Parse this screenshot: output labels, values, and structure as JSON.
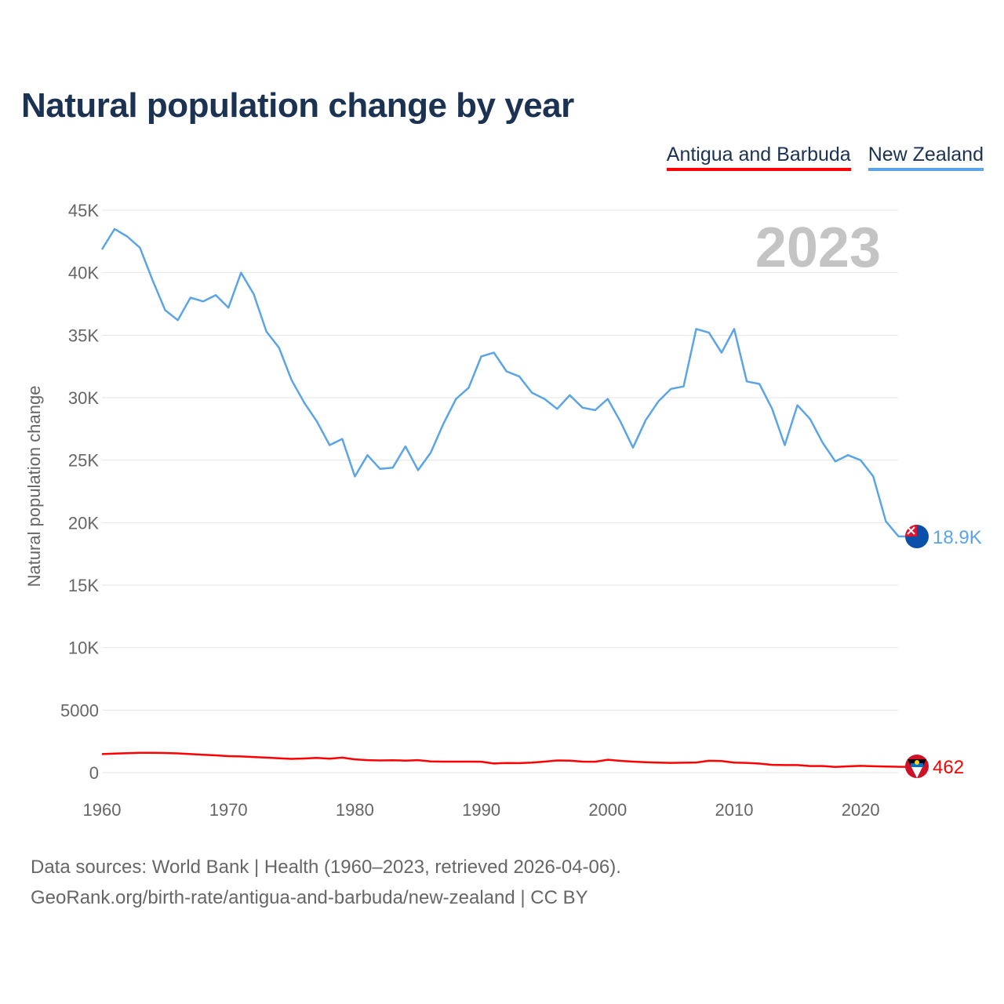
{
  "title": "Natural population change by year",
  "footer": {
    "line1": "Data sources: World Bank | Health (1960–2023, retrieved 2026-04-06).",
    "line2": "GeoRank.org/birth-rate/antigua-and-barbuda/new-zealand | CC BY"
  },
  "chart_data": {
    "type": "line",
    "title": "Natural population change by year",
    "ylabel": "Natural population change",
    "xlabel": "",
    "year_label": "2023",
    "xlim": [
      1960,
      2023
    ],
    "ylim": [
      0,
      45000
    ],
    "x_ticks": [
      "1960",
      "1970",
      "1980",
      "1990",
      "2000",
      "2010",
      "2020"
    ],
    "y_ticks": [
      {
        "v": 0,
        "label": "0"
      },
      {
        "v": 5000,
        "label": "5000"
      },
      {
        "v": 10000,
        "label": "10K"
      },
      {
        "v": 15000,
        "label": "15K"
      },
      {
        "v": 20000,
        "label": "20K"
      },
      {
        "v": 25000,
        "label": "25K"
      },
      {
        "v": 30000,
        "label": "30K"
      },
      {
        "v": 35000,
        "label": "35K"
      },
      {
        "v": 40000,
        "label": "40K"
      },
      {
        "v": 45000,
        "label": "45K"
      }
    ],
    "grid": true,
    "legend_position": "top-right",
    "x_start": 1960,
    "series": [
      {
        "name": "Antigua and Barbuda",
        "color": "#ff0000",
        "end_label": "462",
        "flag": "antigua-flag",
        "values": [
          1480,
          1520,
          1550,
          1580,
          1590,
          1570,
          1540,
          1480,
          1430,
          1380,
          1320,
          1290,
          1250,
          1200,
          1150,
          1100,
          1130,
          1180,
          1120,
          1200,
          1060,
          1000,
          970,
          990,
          960,
          1000,
          900,
          880,
          880,
          880,
          870,
          730,
          770,
          760,
          800,
          880,
          970,
          960,
          880,
          870,
          1030,
          940,
          880,
          830,
          800,
          780,
          790,
          810,
          950,
          930,
          800,
          780,
          720,
          620,
          600,
          600,
          530,
          530,
          450,
          500,
          540,
          510,
          490,
          462
        ]
      },
      {
        "name": "New Zealand",
        "color": "#5ba4e6",
        "end_label": "18.9K",
        "flag": "new-zealand-flag",
        "values": [
          41860,
          43500,
          42900,
          42000,
          39400,
          37000,
          36200,
          38000,
          37700,
          38200,
          37200,
          40000,
          38300,
          35300,
          34000,
          31400,
          29600,
          28100,
          26200,
          26700,
          23700,
          25400,
          24300,
          24400,
          26100,
          24200,
          25600,
          27900,
          29900,
          30800,
          33300,
          33600,
          32100,
          31700,
          30400,
          29900,
          29100,
          30200,
          29200,
          29000,
          29900,
          28100,
          26000,
          28200,
          29700,
          30700,
          30900,
          35500,
          35200,
          33600,
          35500,
          31300,
          31100,
          29100,
          26200,
          29400,
          28300,
          26400,
          24900,
          25400,
          25000,
          23700,
          20100,
          18900
        ]
      }
    ]
  }
}
